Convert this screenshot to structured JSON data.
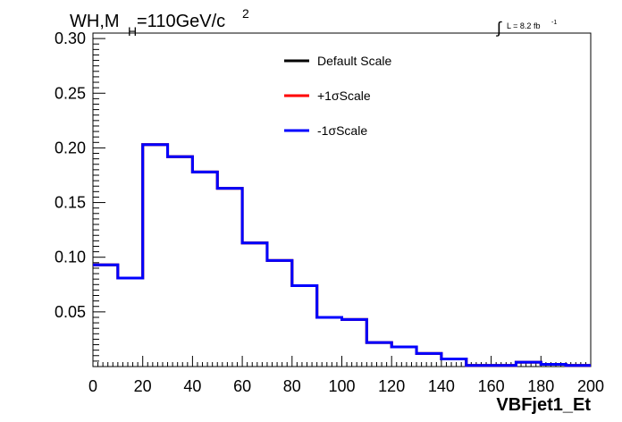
{
  "chart_data": {
    "type": "line",
    "title_parts": {
      "wh": "WH,M",
      "h": "H",
      "rest": "=110GeV/c",
      "exp": "2"
    },
    "lumi": {
      "label": "L = 8.2 fb",
      "exp": "-1"
    },
    "xlabel": "VBFjet1_Et",
    "ylabel": "",
    "xlim": [
      0,
      200
    ],
    "ylim": [
      0,
      0.305
    ],
    "x_ticks": [
      0,
      20,
      40,
      60,
      80,
      100,
      120,
      140,
      160,
      180,
      200
    ],
    "x_tick_labels": [
      "0",
      "20",
      "40",
      "60",
      "80",
      "100",
      "120",
      "140",
      "160",
      "180",
      "200"
    ],
    "y_ticks": [
      0.05,
      0.1,
      0.15,
      0.2,
      0.25,
      0.3
    ],
    "y_tick_labels": [
      "0.05",
      "0.10",
      "0.15",
      "0.20",
      "0.25",
      "0.30"
    ],
    "bin_edges": [
      0,
      10,
      20,
      30,
      40,
      50,
      60,
      70,
      80,
      90,
      100,
      110,
      120,
      130,
      140,
      150,
      160,
      170,
      180,
      190,
      200
    ],
    "legend_position": "top-center",
    "series": [
      {
        "name": "Default Scale",
        "color": "#000000",
        "values": [
          0.093,
          0.081,
          0.203,
          0.192,
          0.178,
          0.163,
          0.113,
          0.097,
          0.074,
          0.045,
          0.043,
          0.022,
          0.018,
          0.012,
          0.007,
          0.001,
          0.001,
          0.004,
          0.002,
          0.001
        ]
      },
      {
        "name": "+1σScale",
        "color": "#ff0000",
        "values": [
          0.093,
          0.081,
          0.203,
          0.192,
          0.178,
          0.163,
          0.113,
          0.097,
          0.074,
          0.045,
          0.043,
          0.022,
          0.018,
          0.012,
          0.007,
          0.001,
          0.001,
          0.004,
          0.002,
          0.001
        ]
      },
      {
        "name": "-1σScale",
        "color": "#0000ff",
        "values": [
          0.093,
          0.081,
          0.203,
          0.192,
          0.178,
          0.163,
          0.113,
          0.097,
          0.074,
          0.045,
          0.043,
          0.022,
          0.018,
          0.012,
          0.007,
          0.001,
          0.001,
          0.004,
          0.002,
          0.001
        ]
      }
    ]
  }
}
